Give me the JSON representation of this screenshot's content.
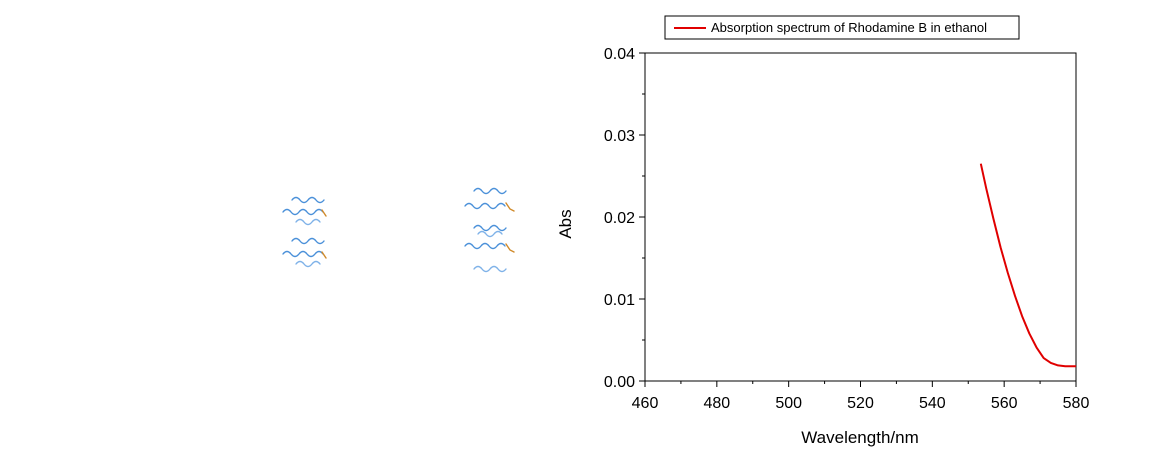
{
  "chart_data": {
    "type": "line",
    "title": "",
    "xlabel": "Wavelength/nm",
    "ylabel": "Abs",
    "xlim": [
      460,
      580
    ],
    "ylim": [
      0.0,
      0.04
    ],
    "x_ticks": [
      "460",
      "480",
      "500",
      "520",
      "540",
      "560",
      "580"
    ],
    "y_ticks": [
      "0.00",
      "0.01",
      "0.02",
      "0.03",
      "0.04"
    ],
    "grid": false,
    "legend_position": "top",
    "series": [
      {
        "name": "Absorption spectrum of Rhodamine B in ethanol",
        "color": "#e00000",
        "x": [
          553.5,
          555,
          557,
          559,
          561,
          563,
          565,
          567,
          569,
          571,
          573,
          575,
          577,
          579,
          580
        ],
        "y": [
          0.0265,
          0.0235,
          0.0198,
          0.0163,
          0.0132,
          0.0104,
          0.0079,
          0.0058,
          0.0041,
          0.0028,
          0.0022,
          0.0019,
          0.0018,
          0.0018,
          0.0018
        ]
      }
    ]
  }
}
